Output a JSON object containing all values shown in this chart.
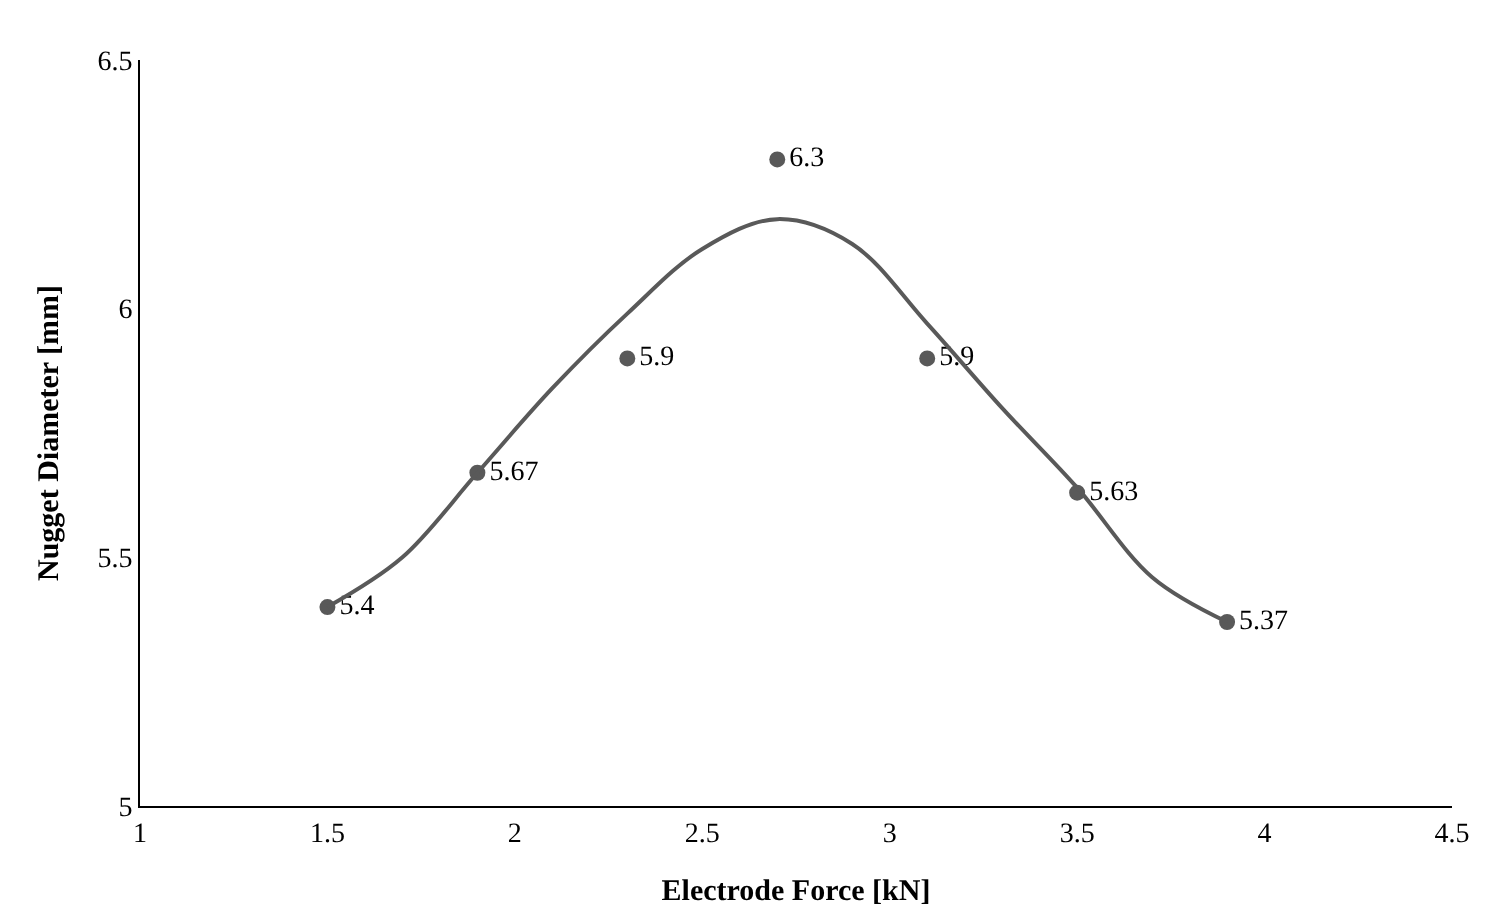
{
  "chart_data": {
    "type": "scatter",
    "xlabel": "Electrode Force [kN]",
    "ylabel": "Nugget Diameter [mm]",
    "xlim": [
      1,
      4.5
    ],
    "xticks": [
      1,
      1.5,
      2,
      2.5,
      3,
      3.5,
      4,
      4.5
    ],
    "ylim": [
      5,
      6.5
    ],
    "yticks": [
      5,
      5.5,
      6,
      6.5
    ],
    "marker": "circle",
    "series": [
      {
        "color": "#595959",
        "x": [
          1.5,
          1.9,
          2.3,
          2.7,
          3.1,
          3.5,
          3.9
        ],
        "values": [
          5.4,
          5.67,
          5.9,
          6.3,
          5.9,
          5.63,
          5.37
        ],
        "data_labels": true
      },
      {
        "type": "line",
        "color": "#595959",
        "line_style": "solid",
        "marker": "none",
        "x": [
          1.5,
          1.7,
          1.9,
          2.1,
          2.3,
          2.5,
          2.7,
          2.9,
          3.1,
          3.3,
          3.5,
          3.7,
          3.9
        ],
        "values": [
          5.4,
          5.5,
          5.67,
          5.84,
          5.99,
          6.12,
          6.18,
          6.13,
          5.97,
          5.8,
          5.64,
          5.46,
          5.37
        ]
      }
    ]
  }
}
